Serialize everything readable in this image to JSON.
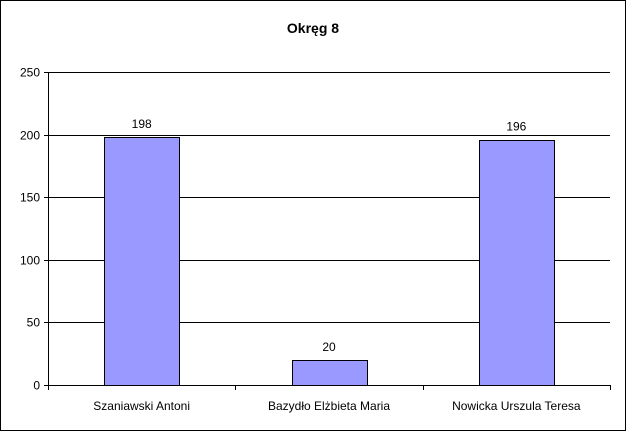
{
  "chart_data": {
    "type": "bar",
    "title": "Okręg 8",
    "categories": [
      "Szaniawski Antoni",
      "Bazydło Elżbieta Maria",
      "Nowicka Urszula Teresa"
    ],
    "values": [
      198,
      20,
      196
    ],
    "data_labels": [
      "198",
      "20",
      "196"
    ],
    "xlabel": "",
    "ylabel": "",
    "ylim": [
      0,
      250
    ],
    "yticks": [
      0,
      50,
      100,
      150,
      200,
      250
    ],
    "grid": true,
    "legend": "none",
    "colors": {
      "bar_fill": "#9999ff",
      "bar_stroke": "#000000",
      "grid": "#000000",
      "background": "#ffffff"
    }
  }
}
